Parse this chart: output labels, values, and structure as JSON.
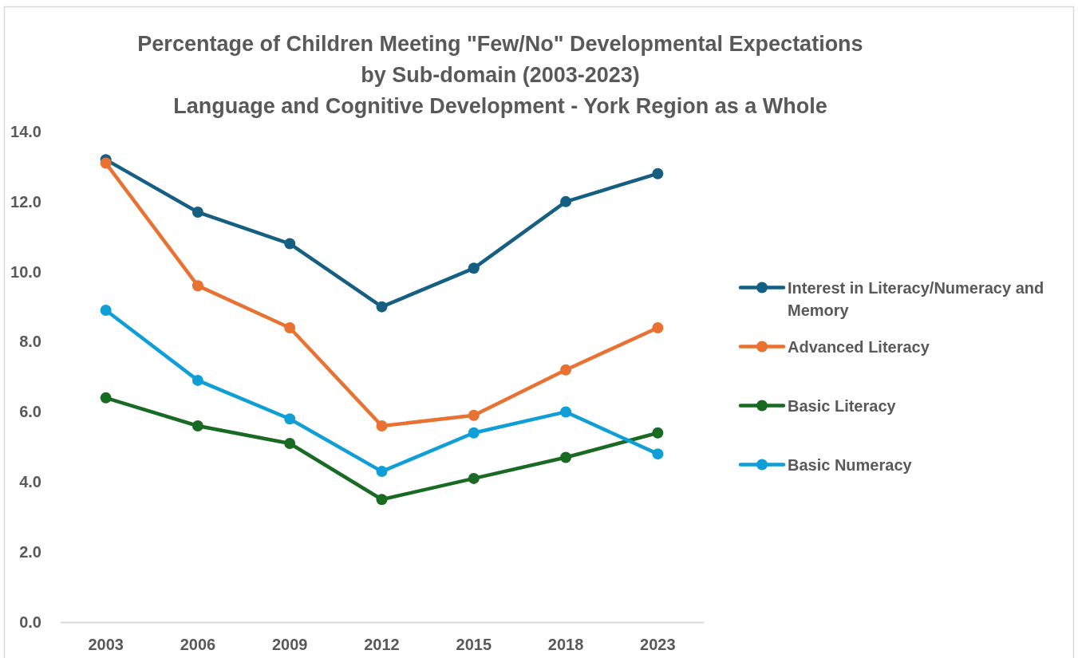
{
  "chart_data": {
    "type": "line",
    "title": "Percentage of Children Meeting \"Few/No\" Developmental Expectations by Sub-domain (2003-2023)",
    "subtitle": "Language and Cognitive Development - York Region as a Whole",
    "categories": [
      "2003",
      "2006",
      "2009",
      "2012",
      "2015",
      "2018",
      "2023"
    ],
    "series": [
      {
        "name": "Interest in Literacy/Numeracy and Memory",
        "color": "#156082",
        "values": [
          13.2,
          11.7,
          10.8,
          9.0,
          10.1,
          12.0,
          12.8
        ]
      },
      {
        "name": "Advanced Literacy",
        "color": "#e97132",
        "values": [
          13.1,
          9.6,
          8.4,
          5.6,
          5.9,
          7.2,
          8.4
        ]
      },
      {
        "name": "Basic Literacy",
        "color": "#196b24",
        "values": [
          6.4,
          5.6,
          5.1,
          3.5,
          4.1,
          4.7,
          5.4
        ]
      },
      {
        "name": "Basic Numeracy",
        "color": "#0f9ed5",
        "values": [
          8.9,
          6.9,
          5.8,
          4.3,
          5.4,
          6.0,
          4.8
        ]
      }
    ],
    "ylim": [
      0,
      14
    ],
    "yticks": [
      {
        "value": 0,
        "label": "0.0"
      },
      {
        "value": 2,
        "label": "2.0"
      },
      {
        "value": 4,
        "label": "4.0"
      },
      {
        "value": 6,
        "label": "6.0"
      },
      {
        "value": 8,
        "label": "8.0"
      },
      {
        "value": 10,
        "label": "10.0"
      },
      {
        "value": 12,
        "label": "12.0"
      },
      {
        "value": 14,
        "label": "14.0"
      }
    ],
    "legend": "right",
    "marker": "circle",
    "line_style": "solid"
  }
}
